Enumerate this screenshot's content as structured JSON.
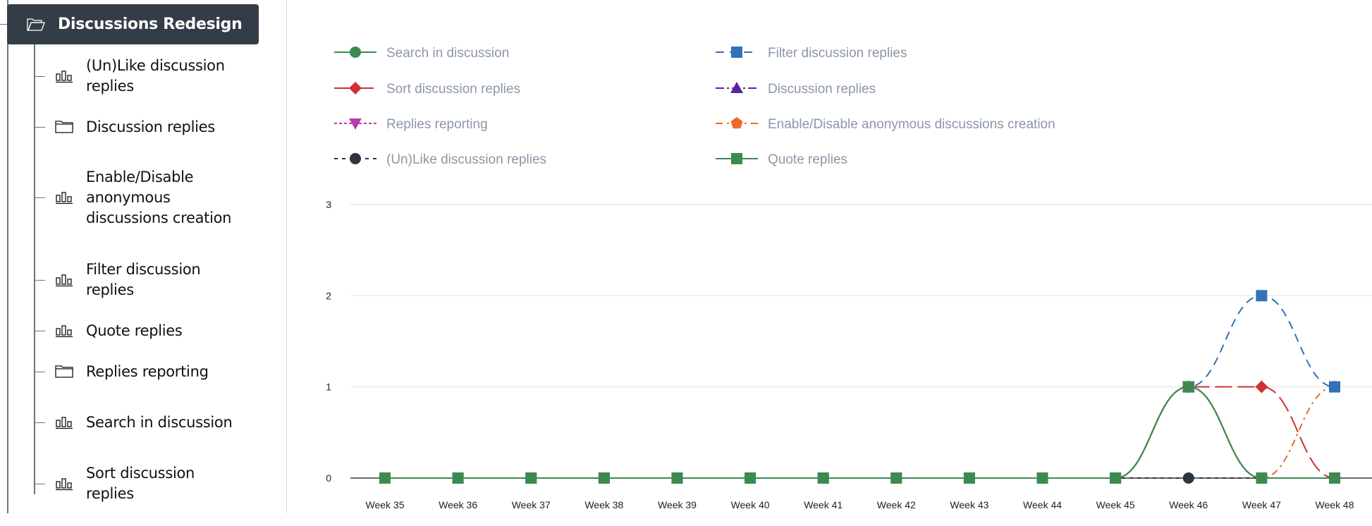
{
  "sidebar": {
    "root": {
      "label": "Discussions Redesign",
      "icon": "folder-open-icon"
    },
    "items": [
      {
        "label": "(Un)Like discussion replies",
        "icon": "bar-chart-icon"
      },
      {
        "label": "Discussion replies",
        "icon": "folder-icon"
      },
      {
        "label": "Enable/Disable anonymous discussions creation",
        "icon": "bar-chart-icon"
      },
      {
        "label": "Filter discussion replies",
        "icon": "bar-chart-icon"
      },
      {
        "label": "Quote replies",
        "icon": "bar-chart-icon"
      },
      {
        "label": "Replies reporting",
        "icon": "folder-icon"
      },
      {
        "label": "Search in discussion",
        "icon": "bar-chart-icon"
      },
      {
        "label": "Sort discussion replies",
        "icon": "bar-chart-icon"
      }
    ]
  },
  "chart_data": {
    "type": "line",
    "categories": [
      "Week 35",
      "Week 36",
      "Week 37",
      "Week 38",
      "Week 39",
      "Week 40",
      "Week 41",
      "Week 42",
      "Week 43",
      "Week 44",
      "Week 45",
      "Week 46",
      "Week 47",
      "Week 48"
    ],
    "ylim": [
      0,
      3
    ],
    "yticks": [
      0,
      1,
      2,
      3
    ],
    "grid": true,
    "legend_position": "top",
    "series": [
      {
        "name": "Search in discussion",
        "color": "#3d8a50",
        "marker": "circle",
        "dash": "",
        "values": [
          0,
          0,
          0,
          0,
          0,
          0,
          0,
          0,
          0,
          0,
          0,
          1,
          0,
          0
        ]
      },
      {
        "name": "Filter discussion replies",
        "color": "#3372b5",
        "marker": "square",
        "dash": "12 8",
        "values": [
          0,
          0,
          0,
          0,
          0,
          0,
          0,
          0,
          0,
          0,
          0,
          1,
          2,
          1
        ]
      },
      {
        "name": "Sort discussion replies",
        "color": "#d03131",
        "marker": "diamond",
        "dash": "24 8",
        "values": [
          0,
          0,
          0,
          0,
          0,
          0,
          0,
          0,
          0,
          0,
          0,
          1,
          1,
          0
        ]
      },
      {
        "name": "Discussion replies",
        "color": "#5b23a0",
        "marker": "triangle",
        "dash": "12 4 3 4",
        "values": [
          0,
          0,
          0,
          0,
          0,
          0,
          0,
          0,
          0,
          0,
          0,
          1,
          0,
          0
        ]
      },
      {
        "name": "Replies reporting",
        "color": "#b43ea8",
        "marker": "triangle-down",
        "dash": "4 3",
        "values": [
          0,
          0,
          0,
          0,
          0,
          0,
          0,
          0,
          0,
          0,
          0,
          1,
          0,
          0
        ]
      },
      {
        "name": "Enable/Disable anonymous discussions creation",
        "color": "#ec6a2b",
        "marker": "pentagon",
        "dash": "10 6 3 6",
        "values": [
          0,
          0,
          0,
          0,
          0,
          0,
          0,
          0,
          0,
          0,
          0,
          1,
          0,
          1
        ]
      },
      {
        "name": "(Un)Like discussion replies",
        "color": "#2c3440",
        "marker": "circle",
        "dash": "5 6",
        "values": [
          0,
          0,
          0,
          0,
          0,
          0,
          0,
          0,
          0,
          0,
          0,
          0,
          0,
          0
        ]
      },
      {
        "name": "Quote replies",
        "color": "#3d8a50",
        "marker": "square",
        "dash": "",
        "values": [
          0,
          0,
          0,
          0,
          0,
          0,
          0,
          0,
          0,
          0,
          0,
          1,
          0,
          0
        ]
      }
    ]
  }
}
